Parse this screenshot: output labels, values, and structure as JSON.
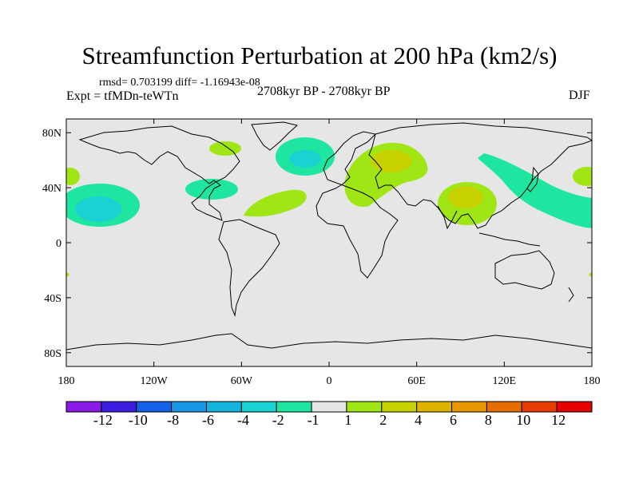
{
  "header": {
    "title": "Streamfunction Perturbation at 200 hPa (km2/s)",
    "stats": "rmsd= 0.703199 diff= -1.16943e-08",
    "period": "2708kyr BP - 2708kyr BP",
    "experiment": "Expt = tfMDn-teWTn",
    "season": "DJF"
  },
  "map": {
    "projection": "cylindrical-equidistant",
    "lon_range": [
      -180,
      180
    ],
    "lat_range": [
      -90,
      90
    ],
    "background_color": "#e6e6e6",
    "lat_ticks": [
      {
        "value": 80,
        "label": "80N"
      },
      {
        "value": 40,
        "label": "40N"
      },
      {
        "value": 0,
        "label": "0"
      },
      {
        "value": -40,
        "label": "40S"
      },
      {
        "value": -80,
        "label": "80S"
      }
    ],
    "lon_ticks": [
      {
        "value": -180,
        "label": "180"
      },
      {
        "value": -120,
        "label": "120W"
      },
      {
        "value": -60,
        "label": "60W"
      },
      {
        "value": 0,
        "label": "0"
      },
      {
        "value": 60,
        "label": "60E"
      },
      {
        "value": 120,
        "label": "120E"
      },
      {
        "value": 180,
        "label": "180"
      }
    ]
  },
  "colorbar": {
    "colors": [
      "#8a1ae6",
      "#3c1ee0",
      "#1460e6",
      "#1a96e6",
      "#14b4dc",
      "#1ad2d2",
      "#1ee6a0",
      "#e6e6e6",
      "#a0e614",
      "#c8d200",
      "#dcb400",
      "#e69600",
      "#e66e00",
      "#e63c00",
      "#e60000"
    ],
    "labels": [
      "-12",
      "-10",
      "-8",
      "-6",
      "-4",
      "-2",
      "-1",
      "1",
      "2",
      "4",
      "6",
      "8",
      "10",
      "12"
    ]
  }
}
